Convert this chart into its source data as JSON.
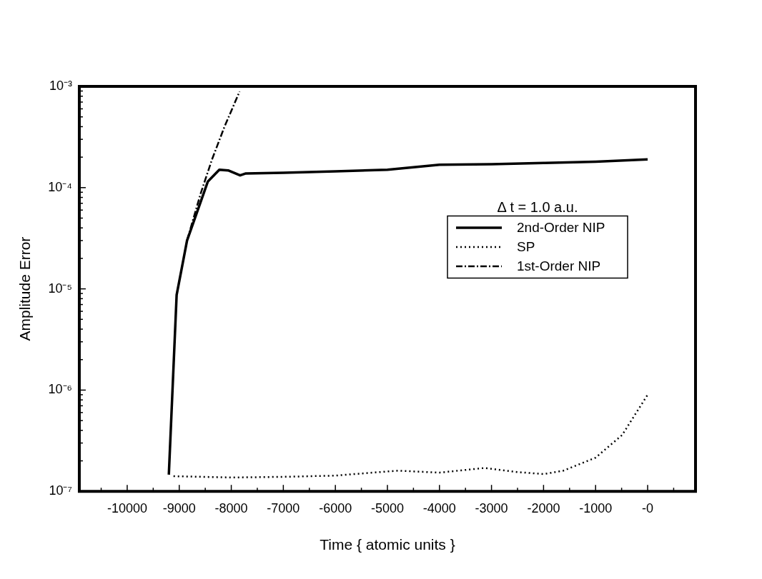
{
  "chart_data": {
    "type": "line",
    "xlabel": "Time { atomic units }",
    "ylabel": "Amplitude Error",
    "legend_title": "Δ t = 1.0 a.u.",
    "legend": "right",
    "log": "y",
    "grid": false,
    "marker": "none",
    "xlim": [
      -10920,
      920
    ],
    "xticks": [
      -10000,
      -9000,
      -8000,
      -7000,
      -6000,
      -5000,
      -4000,
      -3000,
      -2000,
      -1000,
      {
        "value": 0,
        "label": "-0"
      },
      {
        "value": -10500,
        "label": null
      },
      {
        "value": -9500,
        "label": null
      },
      {
        "value": -8500,
        "label": null
      },
      {
        "value": -7500,
        "label": null
      },
      {
        "value": -6500,
        "label": null
      },
      {
        "value": -5500,
        "label": null
      },
      {
        "value": -4500,
        "label": null
      },
      {
        "value": -3500,
        "label": null
      },
      {
        "value": -2500,
        "label": null
      },
      {
        "value": -1500,
        "label": null
      },
      {
        "value": -500,
        "label": null
      },
      {
        "value": 500,
        "label": null
      }
    ],
    "ylim": [
      1e-07,
      0.001
    ],
    "yticks": [
      {
        "value": 1e-07,
        "label": "10⁻⁷"
      },
      {
        "value": 1e-06,
        "label": "10⁻⁶"
      },
      {
        "value": 1e-05,
        "label": "10⁻⁵"
      },
      {
        "value": 0.0001,
        "label": "10⁻⁴"
      },
      {
        "value": 0.001,
        "label": "10⁻³"
      },
      {
        "value": 2e-07,
        "label": null
      },
      {
        "value": 3e-07,
        "label": null
      },
      {
        "value": 4e-07,
        "label": null
      },
      {
        "value": 5e-07,
        "label": null
      },
      {
        "value": 6e-07,
        "label": null
      },
      {
        "value": 7e-07,
        "label": null
      },
      {
        "value": 8e-07,
        "label": null
      },
      {
        "value": 9e-07,
        "label": null
      },
      {
        "value": 2e-06,
        "label": null
      },
      {
        "value": 3e-06,
        "label": null
      },
      {
        "value": 4e-06,
        "label": null
      },
      {
        "value": 5e-06,
        "label": null
      },
      {
        "value": 6e-06,
        "label": null
      },
      {
        "value": 7e-06,
        "label": null
      },
      {
        "value": 8e-06,
        "label": null
      },
      {
        "value": 9e-06,
        "label": null
      },
      {
        "value": 2e-05,
        "label": null
      },
      {
        "value": 3e-05,
        "label": null
      },
      {
        "value": 4e-05,
        "label": null
      },
      {
        "value": 5e-05,
        "label": null
      },
      {
        "value": 6e-05,
        "label": null
      },
      {
        "value": 7e-05,
        "label": null
      },
      {
        "value": 8e-05,
        "label": null
      },
      {
        "value": 9e-05,
        "label": null
      },
      {
        "value": 0.0002,
        "label": null
      },
      {
        "value": 0.0003,
        "label": null
      },
      {
        "value": 0.0004,
        "label": null
      },
      {
        "value": 0.0005,
        "label": null
      },
      {
        "value": 0.0006,
        "label": null
      },
      {
        "value": 0.0007,
        "label": null
      },
      {
        "value": 0.0008,
        "label": null
      },
      {
        "value": 0.0009,
        "label": null
      }
    ],
    "series": [
      {
        "name": "2nd-Order NIP",
        "color": "#000000",
        "line_style": "solid",
        "x": [
          -9200,
          -9050,
          -8850,
          -8450,
          -8230,
          -8060,
          -7830,
          -7720,
          -7000,
          -6000,
          -5000,
          -4000,
          -3000,
          -2000,
          -1000,
          0
        ],
        "values": [
          1.46e-07,
          8.7e-06,
          3e-05,
          0.000115,
          0.00015,
          0.000148,
          0.000132,
          0.000138,
          0.00014,
          0.000145,
          0.00015,
          0.000168,
          0.00017,
          0.000175,
          0.00018,
          0.00019
        ]
      },
      {
        "name": "SP",
        "color": "#000000",
        "line_style": "dotted",
        "x": [
          -9110,
          -8000,
          -7000,
          -6000,
          -5500,
          -4800,
          -4000,
          -3140,
          -2500,
          -2000,
          -1620,
          -1000,
          -490,
          0
        ],
        "values": [
          1.41e-07,
          1.37e-07,
          1.39e-07,
          1.43e-07,
          1.5e-07,
          1.6e-07,
          1.53e-07,
          1.7e-07,
          1.55e-07,
          1.48e-07,
          1.6e-07,
          2.15e-07,
          3.6e-07,
          9e-07
        ]
      },
      {
        "name": "1st-Order NIP",
        "color": "#000000",
        "line_style": "dashdot",
        "x": [
          -8850,
          -8590,
          -8370,
          -8130,
          -7840
        ],
        "values": [
          3e-05,
          8.7e-05,
          0.00019,
          0.0004,
          0.00089
        ]
      }
    ]
  }
}
